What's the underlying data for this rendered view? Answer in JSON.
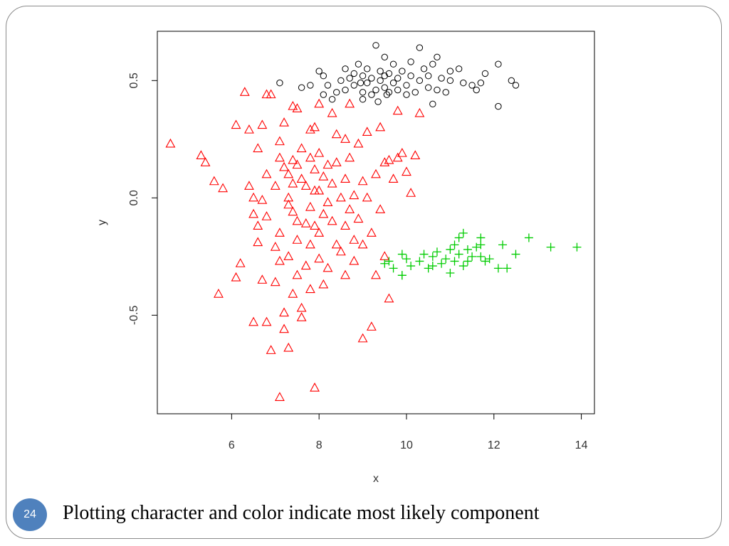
{
  "slide": {
    "number": "24",
    "caption": "Plotting character and color indicate most likely component"
  },
  "chart_data": {
    "type": "scatter",
    "xlabel": "x",
    "ylabel": "y",
    "xlim": [
      4.3,
      14.3
    ],
    "ylim": [
      -0.92,
      0.71
    ],
    "xticks": [
      6,
      8,
      10,
      12,
      14
    ],
    "yticks": [
      -0.5,
      0.0,
      0.5
    ],
    "ytick_labels": [
      "-0.5",
      "0.0",
      "0.5"
    ],
    "grid": false,
    "series": [
      {
        "marker": "circle",
        "color": "#000000",
        "points": [
          [
            7.1,
            0.49
          ],
          [
            7.6,
            0.47
          ],
          [
            7.8,
            0.48
          ],
          [
            8.0,
            0.54
          ],
          [
            8.1,
            0.52
          ],
          [
            8.1,
            0.44
          ],
          [
            8.2,
            0.48
          ],
          [
            8.3,
            0.42
          ],
          [
            8.4,
            0.45
          ],
          [
            8.5,
            0.5
          ],
          [
            8.6,
            0.46
          ],
          [
            8.6,
            0.55
          ],
          [
            8.7,
            0.51
          ],
          [
            8.8,
            0.53
          ],
          [
            8.8,
            0.48
          ],
          [
            8.9,
            0.57
          ],
          [
            9.0,
            0.45
          ],
          [
            9.0,
            0.52
          ],
          [
            9.1,
            0.49
          ],
          [
            9.1,
            0.55
          ],
          [
            9.2,
            0.44
          ],
          [
            9.2,
            0.51
          ],
          [
            9.3,
            0.65
          ],
          [
            9.3,
            0.46
          ],
          [
            9.4,
            0.5
          ],
          [
            9.4,
            0.54
          ],
          [
            9.5,
            0.47
          ],
          [
            9.5,
            0.52
          ],
          [
            9.5,
            0.6
          ],
          [
            9.6,
            0.45
          ],
          [
            9.6,
            0.53
          ],
          [
            9.7,
            0.49
          ],
          [
            9.7,
            0.57
          ],
          [
            9.8,
            0.51
          ],
          [
            9.8,
            0.46
          ],
          [
            9.9,
            0.54
          ],
          [
            10.0,
            0.48
          ],
          [
            10.1,
            0.52
          ],
          [
            10.1,
            0.58
          ],
          [
            10.2,
            0.45
          ],
          [
            10.3,
            0.5
          ],
          [
            10.3,
            0.64
          ],
          [
            10.4,
            0.55
          ],
          [
            10.5,
            0.47
          ],
          [
            10.5,
            0.52
          ],
          [
            10.6,
            0.57
          ],
          [
            10.7,
            0.46
          ],
          [
            10.7,
            0.6
          ],
          [
            10.8,
            0.51
          ],
          [
            10.9,
            0.45
          ],
          [
            11.0,
            0.5
          ],
          [
            11.0,
            0.54
          ],
          [
            11.2,
            0.55
          ],
          [
            11.3,
            0.49
          ],
          [
            11.5,
            0.48
          ],
          [
            11.6,
            0.46
          ],
          [
            11.7,
            0.49
          ],
          [
            11.8,
            0.53
          ],
          [
            12.1,
            0.57
          ],
          [
            12.1,
            0.39
          ],
          [
            12.4,
            0.5
          ],
          [
            12.5,
            0.48
          ],
          [
            9.0,
            0.42
          ],
          [
            9.35,
            0.41
          ],
          [
            10.0,
            0.44
          ],
          [
            8.95,
            0.49
          ],
          [
            9.55,
            0.44
          ],
          [
            10.6,
            0.4
          ]
        ]
      },
      {
        "marker": "triangle",
        "color": "#ff0000",
        "points": [
          [
            4.6,
            0.23
          ],
          [
            5.3,
            0.18
          ],
          [
            5.4,
            0.15
          ],
          [
            5.6,
            0.07
          ],
          [
            5.7,
            -0.41
          ],
          [
            5.8,
            0.04
          ],
          [
            6.1,
            0.31
          ],
          [
            6.1,
            -0.34
          ],
          [
            6.2,
            -0.28
          ],
          [
            6.3,
            0.45
          ],
          [
            6.4,
            0.29
          ],
          [
            6.4,
            0.05
          ],
          [
            6.5,
            0.0
          ],
          [
            6.5,
            -0.07
          ],
          [
            6.5,
            -0.53
          ],
          [
            6.6,
            0.21
          ],
          [
            6.6,
            -0.19
          ],
          [
            6.7,
            0.31
          ],
          [
            6.7,
            -0.01
          ],
          [
            6.7,
            -0.35
          ],
          [
            6.8,
            0.44
          ],
          [
            6.8,
            0.1
          ],
          [
            6.8,
            -0.08
          ],
          [
            6.8,
            -0.53
          ],
          [
            6.9,
            0.44
          ],
          [
            6.9,
            -0.65
          ],
          [
            7.0,
            0.05
          ],
          [
            7.0,
            -0.21
          ],
          [
            7.0,
            -0.36
          ],
          [
            7.1,
            0.24
          ],
          [
            7.1,
            0.17
          ],
          [
            7.1,
            -0.15
          ],
          [
            7.1,
            -0.27
          ],
          [
            7.2,
            0.13
          ],
          [
            7.2,
            -0.49
          ],
          [
            7.2,
            -0.56
          ],
          [
            7.3,
            0.1
          ],
          [
            7.3,
            0.0
          ],
          [
            7.3,
            -0.03
          ],
          [
            7.3,
            -0.25
          ],
          [
            7.4,
            0.39
          ],
          [
            7.4,
            0.06
          ],
          [
            7.4,
            -0.06
          ],
          [
            7.4,
            -0.41
          ],
          [
            7.5,
            0.38
          ],
          [
            7.5,
            0.14
          ],
          [
            7.5,
            -0.1
          ],
          [
            7.5,
            -0.18
          ],
          [
            7.5,
            -0.33
          ],
          [
            7.6,
            0.21
          ],
          [
            7.6,
            0.08
          ],
          [
            7.6,
            -0.47
          ],
          [
            7.7,
            0.05
          ],
          [
            7.7,
            -0.11
          ],
          [
            7.7,
            -0.29
          ],
          [
            7.8,
            0.29
          ],
          [
            7.8,
            0.17
          ],
          [
            7.8,
            -0.04
          ],
          [
            7.8,
            -0.2
          ],
          [
            7.8,
            -0.39
          ],
          [
            7.9,
            0.3
          ],
          [
            7.9,
            0.12
          ],
          [
            7.9,
            -0.12
          ],
          [
            7.9,
            -0.81
          ],
          [
            8.0,
            0.4
          ],
          [
            8.0,
            0.19
          ],
          [
            8.0,
            0.03
          ],
          [
            8.0,
            -0.15
          ],
          [
            8.0,
            -0.26
          ],
          [
            8.1,
            0.09
          ],
          [
            8.1,
            -0.07
          ],
          [
            8.1,
            -0.37
          ],
          [
            8.2,
            0.14
          ],
          [
            8.2,
            -0.02
          ],
          [
            8.2,
            -0.3
          ],
          [
            8.3,
            0.36
          ],
          [
            8.3,
            0.06
          ],
          [
            8.3,
            -0.1
          ],
          [
            8.4,
            0.15
          ],
          [
            8.4,
            -0.2
          ],
          [
            8.5,
            0.0
          ],
          [
            8.5,
            -0.23
          ],
          [
            8.6,
            0.25
          ],
          [
            8.6,
            0.08
          ],
          [
            8.6,
            -0.12
          ],
          [
            8.6,
            -0.33
          ],
          [
            8.7,
            0.17
          ],
          [
            8.7,
            -0.05
          ],
          [
            8.8,
            0.01
          ],
          [
            8.8,
            -0.18
          ],
          [
            8.9,
            0.23
          ],
          [
            8.9,
            -0.09
          ],
          [
            9.0,
            0.07
          ],
          [
            9.0,
            -0.2
          ],
          [
            9.0,
            -0.6
          ],
          [
            9.1,
            0.28
          ],
          [
            9.1,
            0.0
          ],
          [
            9.2,
            -0.15
          ],
          [
            9.2,
            -0.55
          ],
          [
            9.3,
            0.1
          ],
          [
            9.3,
            -0.33
          ],
          [
            9.4,
            0.3
          ],
          [
            9.4,
            -0.05
          ],
          [
            9.5,
            0.15
          ],
          [
            9.5,
            -0.25
          ],
          [
            9.6,
            0.16
          ],
          [
            9.6,
            -0.43
          ],
          [
            9.7,
            0.08
          ],
          [
            9.8,
            0.37
          ],
          [
            9.8,
            0.17
          ],
          [
            9.9,
            0.19
          ],
          [
            10.0,
            0.11
          ],
          [
            10.1,
            0.02
          ],
          [
            10.2,
            0.18
          ],
          [
            10.3,
            0.36
          ],
          [
            7.1,
            -0.85
          ],
          [
            7.3,
            -0.64
          ],
          [
            7.6,
            -0.51
          ],
          [
            7.9,
            0.03
          ],
          [
            8.4,
            0.27
          ],
          [
            8.7,
            0.4
          ],
          [
            7.2,
            0.32
          ],
          [
            6.6,
            -0.12
          ],
          [
            7.4,
            0.16
          ],
          [
            8.8,
            -0.27
          ]
        ]
      },
      {
        "marker": "plus",
        "color": "#00cc00",
        "points": [
          [
            9.5,
            -0.28
          ],
          [
            9.6,
            -0.27
          ],
          [
            9.7,
            -0.3
          ],
          [
            9.9,
            -0.24
          ],
          [
            9.9,
            -0.33
          ],
          [
            10.0,
            -0.26
          ],
          [
            10.1,
            -0.29
          ],
          [
            10.3,
            -0.27
          ],
          [
            10.4,
            -0.24
          ],
          [
            10.5,
            -0.3
          ],
          [
            10.6,
            -0.25
          ],
          [
            10.7,
            -0.23
          ],
          [
            10.8,
            -0.28
          ],
          [
            10.9,
            -0.26
          ],
          [
            11.0,
            -0.32
          ],
          [
            11.1,
            -0.2
          ],
          [
            11.2,
            -0.24
          ],
          [
            11.3,
            -0.15
          ],
          [
            11.3,
            -0.29
          ],
          [
            11.4,
            -0.22
          ],
          [
            11.4,
            -0.27
          ],
          [
            11.5,
            -0.25
          ],
          [
            11.6,
            -0.21
          ],
          [
            11.7,
            -0.17
          ],
          [
            11.7,
            -0.2
          ],
          [
            11.8,
            -0.27
          ],
          [
            11.9,
            -0.26
          ],
          [
            12.1,
            -0.3
          ],
          [
            12.2,
            -0.2
          ],
          [
            12.3,
            -0.3
          ],
          [
            12.5,
            -0.24
          ],
          [
            12.8,
            -0.17
          ],
          [
            13.3,
            -0.21
          ],
          [
            13.9,
            -0.21
          ],
          [
            11.0,
            -0.22
          ],
          [
            11.2,
            -0.17
          ],
          [
            10.6,
            -0.29
          ],
          [
            11.1,
            -0.27
          ],
          [
            11.7,
            -0.25
          ],
          [
            9.9,
            -0.33
          ]
        ]
      }
    ]
  }
}
